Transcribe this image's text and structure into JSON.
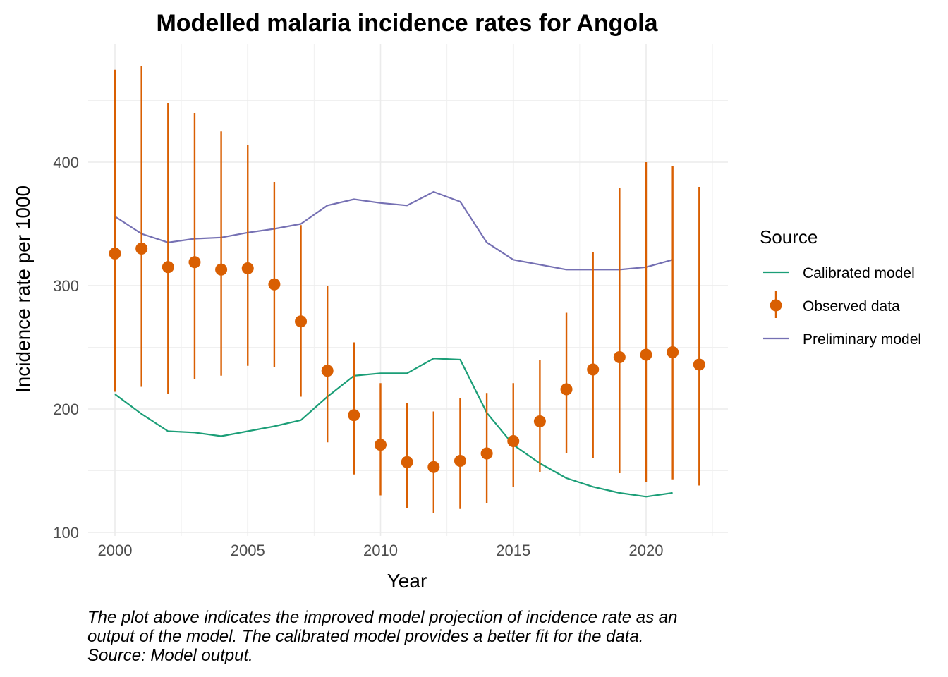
{
  "chart_data": {
    "type": "line",
    "title": "Modelled malaria incidence rates for Angola",
    "xlabel": "Year",
    "ylabel": "Incidence rate per 1000",
    "xlim": [
      1999,
      2023
    ],
    "ylim": [
      100,
      465
    ],
    "x_ticks": [
      2000,
      2005,
      2010,
      2015,
      2020
    ],
    "y_ticks": [
      100,
      200,
      300,
      400
    ],
    "grid": true,
    "legend": {
      "title": "Source",
      "placement": "right"
    },
    "series": [
      {
        "name": "Calibrated model",
        "kind": "line",
        "color": "#1b9e77",
        "x": [
          2000,
          2001,
          2002,
          2003,
          2004,
          2005,
          2006,
          2007,
          2008,
          2009,
          2010,
          2011,
          2012,
          2013,
          2014,
          2015,
          2016,
          2017,
          2018,
          2019,
          2020,
          2021
        ],
        "values": [
          212,
          196,
          182,
          181,
          178,
          182,
          186,
          191,
          210,
          227,
          229,
          229,
          241,
          240,
          197,
          171,
          156,
          144,
          137,
          132,
          129,
          132
        ]
      },
      {
        "name": "Observed data",
        "kind": "pointrange",
        "color": "#d95f02",
        "x": [
          2000,
          2001,
          2002,
          2003,
          2004,
          2005,
          2006,
          2007,
          2008,
          2009,
          2010,
          2011,
          2012,
          2013,
          2014,
          2015,
          2016,
          2017,
          2018,
          2019,
          2020,
          2021,
          2022
        ],
        "values": [
          326,
          330,
          315,
          319,
          313,
          314,
          301,
          271,
          231,
          195,
          171,
          157,
          153,
          158,
          164,
          174,
          190,
          216,
          232,
          242,
          244,
          246,
          236
        ],
        "lower": [
          214,
          218,
          212,
          224,
          227,
          235,
          234,
          210,
          173,
          147,
          130,
          120,
          116,
          119,
          124,
          137,
          149,
          164,
          160,
          148,
          141,
          143,
          138
        ],
        "upper": [
          475,
          478,
          448,
          440,
          425,
          414,
          384,
          349,
          300,
          254,
          221,
          205,
          198,
          209,
          213,
          221,
          240,
          278,
          327,
          379,
          400,
          397,
          380
        ]
      },
      {
        "name": "Preliminary model",
        "kind": "line",
        "color": "#7570b3",
        "x": [
          2000,
          2001,
          2002,
          2003,
          2004,
          2005,
          2006,
          2007,
          2008,
          2009,
          2010,
          2011,
          2012,
          2013,
          2014,
          2015,
          2016,
          2017,
          2018,
          2019,
          2020,
          2021
        ],
        "values": [
          356,
          342,
          335,
          338,
          339,
          343,
          346,
          350,
          365,
          370,
          367,
          365,
          376,
          368,
          335,
          321,
          317,
          313,
          313,
          313,
          315,
          321
        ]
      }
    ]
  },
  "caption": {
    "lines": [
      "The plot above indicates the improved model projection of incidence rate as an",
      "output of the model. The calibrated model provides a better fit for the data.",
      "Source: Model output."
    ]
  }
}
